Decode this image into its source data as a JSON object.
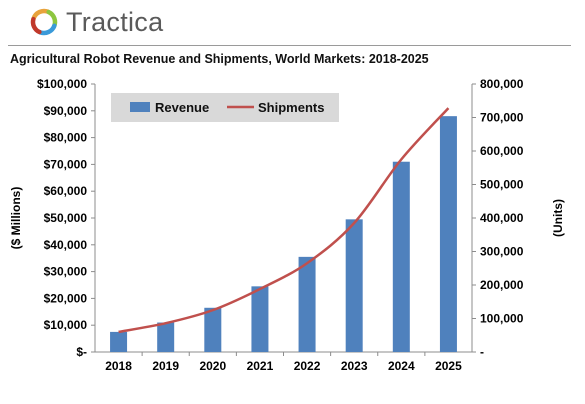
{
  "brand": {
    "name": "Tractica",
    "logo_colors": [
      "#e8a33c",
      "#8dc63f",
      "#3a9ad9",
      "#c0392b"
    ]
  },
  "chart_data": {
    "type": "bar",
    "title": "Agricultural Robot Revenue and Shipments, World Markets: 2018-2025",
    "categories": [
      "2018",
      "2019",
      "2020",
      "2021",
      "2022",
      "2023",
      "2024",
      "2025"
    ],
    "series": [
      {
        "name": "Revenue",
        "type": "bar",
        "axis": "left",
        "color": "#4f81bd",
        "values": [
          7500,
          11000,
          16500,
          24500,
          35500,
          49500,
          71000,
          88000
        ]
      },
      {
        "name": "Shipments",
        "type": "line",
        "axis": "right",
        "color": "#c0504d",
        "values": [
          60000,
          86000,
          125000,
          188000,
          265000,
          385000,
          575000,
          728000
        ]
      }
    ],
    "ylabel": "($ Millions)",
    "y2label": "(Units)",
    "ylim": [
      0,
      100000
    ],
    "y2lim": [
      0,
      800000
    ],
    "yticks": [
      "$-",
      "$10,000",
      "$20,000",
      "$30,000",
      "$40,000",
      "$50,000",
      "$60,000",
      "$70,000",
      "$80,000",
      "$90,000",
      "$100,000"
    ],
    "y2ticks": [
      "-",
      "100,000",
      "200,000",
      "300,000",
      "400,000",
      "500,000",
      "600,000",
      "700,000",
      "800,000"
    ],
    "grid": false,
    "legend": "top-left"
  }
}
